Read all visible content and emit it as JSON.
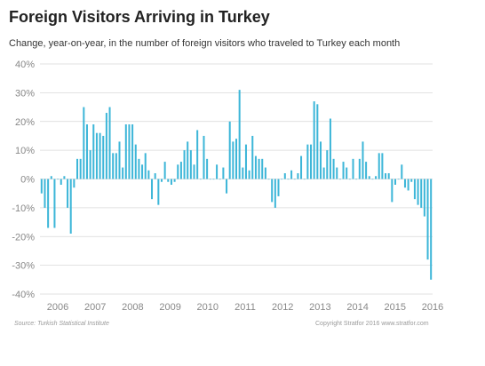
{
  "header": {
    "title": "Foreign Visitors Arriving in Turkey",
    "subtitle": "Change, year-on-year, in the number of foreign visitors who traveled to Turkey each month"
  },
  "footer": {
    "source": "Source: Turkish Statistical Institute",
    "copyright": "Copyright Stratfor 2016  www.stratfor.com"
  },
  "colors": {
    "bar": "#3db6d8",
    "grid": "#d8d8d8",
    "tick": "#888888"
  },
  "chart_data": {
    "type": "bar",
    "title": "Foreign Visitors Arriving in Turkey",
    "ylabel": "",
    "xlabel": "",
    "ylim": [
      -40,
      40
    ],
    "yticks": [
      40,
      30,
      20,
      10,
      0,
      -10,
      -20,
      -30,
      -40
    ],
    "ytick_labels": [
      "40%",
      "30%",
      "20%",
      "10%",
      "0%",
      "-10%",
      "-20%",
      "-30%",
      "-40%"
    ],
    "x_labels": [
      "2006",
      "2007",
      "2008",
      "2009",
      "2010",
      "2011",
      "2012",
      "2013",
      "2014",
      "2015",
      "2016"
    ],
    "grid": true,
    "values": [
      -5,
      -10,
      -17,
      1,
      -17,
      0,
      -2,
      1,
      -10,
      -19,
      -3,
      7,
      7,
      25,
      19,
      10,
      19,
      16,
      16,
      15,
      23,
      25,
      9,
      9,
      13,
      4,
      19,
      19,
      19,
      12,
      7,
      5,
      9,
      3,
      -7,
      2,
      -9,
      -1,
      6,
      -1,
      -2,
      -1,
      5,
      6,
      10,
      13,
      10,
      5,
      17,
      0,
      15,
      7,
      0,
      0,
      5,
      0,
      4,
      -5,
      20,
      13,
      14,
      31,
      4,
      12,
      3,
      15,
      8,
      7,
      7,
      4,
      0,
      -8,
      -10,
      -6,
      0,
      2,
      0,
      3,
      0,
      2,
      8,
      0,
      12,
      12,
      27,
      26,
      13,
      4,
      10,
      21,
      7,
      4,
      0,
      6,
      4,
      0,
      7,
      0,
      7,
      13,
      6,
      1,
      0,
      1,
      9,
      9,
      2,
      2,
      -8,
      -2,
      0,
      5,
      -3,
      -4,
      -1,
      -7,
      -9,
      -10,
      -13,
      -28,
      -35
    ]
  }
}
